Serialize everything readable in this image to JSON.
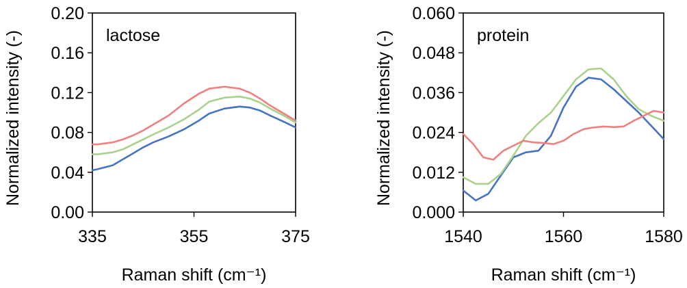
{
  "chart_data": [
    {
      "type": "line",
      "annotation": "lactose",
      "xlabel": "Raman shift (cm⁻¹)",
      "ylabel": "Normalized intensity (-)",
      "xlim": [
        335,
        375
      ],
      "ylim": [
        0,
        0.2
      ],
      "xticks": [
        335,
        355,
        375
      ],
      "xtick_labels": [
        "335",
        "355",
        "375"
      ],
      "yticks": [
        0,
        0.04,
        0.08,
        0.12,
        0.16,
        0.2
      ],
      "ytick_labels": [
        "0.00",
        "0.04",
        "0.08",
        "0.12",
        "0.16",
        "0.20"
      ],
      "series": [
        {
          "color": "#4472c4",
          "x": [
            335,
            336,
            339,
            341,
            343,
            345,
            347,
            350,
            353,
            356,
            358,
            361,
            364,
            366,
            368,
            370,
            373,
            375
          ],
          "y": [
            0.042,
            0.043,
            0.047,
            0.053,
            0.059,
            0.065,
            0.07,
            0.076,
            0.083,
            0.092,
            0.099,
            0.104,
            0.106,
            0.105,
            0.102,
            0.097,
            0.09,
            0.085
          ]
        },
        {
          "color": "#a9d18e",
          "x": [
            335,
            336,
            339,
            341,
            343,
            345,
            347,
            350,
            353,
            356,
            358,
            361,
            364,
            366,
            368,
            370,
            373,
            375
          ],
          "y": [
            0.058,
            0.058,
            0.06,
            0.063,
            0.068,
            0.073,
            0.078,
            0.085,
            0.093,
            0.103,
            0.111,
            0.115,
            0.116,
            0.114,
            0.11,
            0.104,
            0.096,
            0.09
          ]
        },
        {
          "color": "#f08080",
          "x": [
            335,
            336,
            339,
            341,
            343,
            345,
            347,
            350,
            353,
            356,
            358,
            361,
            364,
            366,
            368,
            370,
            373,
            375
          ],
          "y": [
            0.068,
            0.068,
            0.07,
            0.073,
            0.077,
            0.082,
            0.088,
            0.097,
            0.109,
            0.119,
            0.124,
            0.126,
            0.124,
            0.12,
            0.114,
            0.107,
            0.098,
            0.092
          ]
        }
      ]
    },
    {
      "type": "line",
      "annotation": "protein",
      "xlabel": "Raman shift (cm⁻¹)",
      "ylabel": "Normalized intensity (-)",
      "xlim": [
        1540,
        1580
      ],
      "ylim": [
        0,
        0.06
      ],
      "xticks": [
        1540,
        1560,
        1580
      ],
      "xtick_labels": [
        "1540",
        "1560",
        "1580"
      ],
      "yticks": [
        0,
        0.012,
        0.024,
        0.036,
        0.048,
        0.06
      ],
      "ytick_labels": [
        "0.000",
        "0.012",
        "0.024",
        "0.036",
        "0.048",
        "0.060"
      ],
      "series": [
        {
          "color": "#4472c4",
          "x": [
            1540,
            1542.5,
            1545,
            1547.5,
            1550,
            1552.5,
            1555,
            1557.5,
            1560,
            1562.5,
            1565,
            1567.5,
            1570,
            1572.5,
            1575,
            1577.5,
            1580
          ],
          "y": [
            0.0065,
            0.0035,
            0.0055,
            0.011,
            0.0165,
            0.018,
            0.0185,
            0.023,
            0.0315,
            0.0378,
            0.0405,
            0.04,
            0.037,
            0.0335,
            0.03,
            0.026,
            0.022
          ]
        },
        {
          "color": "#a9d18e",
          "x": [
            1540,
            1542.5,
            1545,
            1547.5,
            1550,
            1552.5,
            1555,
            1557.5,
            1560,
            1562.5,
            1565,
            1567.5,
            1570,
            1572.5,
            1575,
            1577.5,
            1580
          ],
          "y": [
            0.0105,
            0.0085,
            0.0085,
            0.0115,
            0.017,
            0.023,
            0.0268,
            0.03,
            0.035,
            0.04,
            0.043,
            0.0433,
            0.04,
            0.035,
            0.031,
            0.029,
            0.0275
          ]
        },
        {
          "color": "#f08080",
          "x": [
            1540,
            1542,
            1544,
            1546,
            1548,
            1550,
            1552,
            1554,
            1556,
            1558,
            1560,
            1562,
            1564,
            1566,
            1568,
            1570,
            1572,
            1574,
            1576,
            1578,
            1580
          ],
          "y": [
            0.0235,
            0.0205,
            0.0165,
            0.0158,
            0.0185,
            0.02,
            0.0215,
            0.021,
            0.0208,
            0.0205,
            0.0215,
            0.0235,
            0.025,
            0.0255,
            0.0258,
            0.0256,
            0.0258,
            0.0275,
            0.029,
            0.0305,
            0.03
          ]
        }
      ]
    }
  ]
}
